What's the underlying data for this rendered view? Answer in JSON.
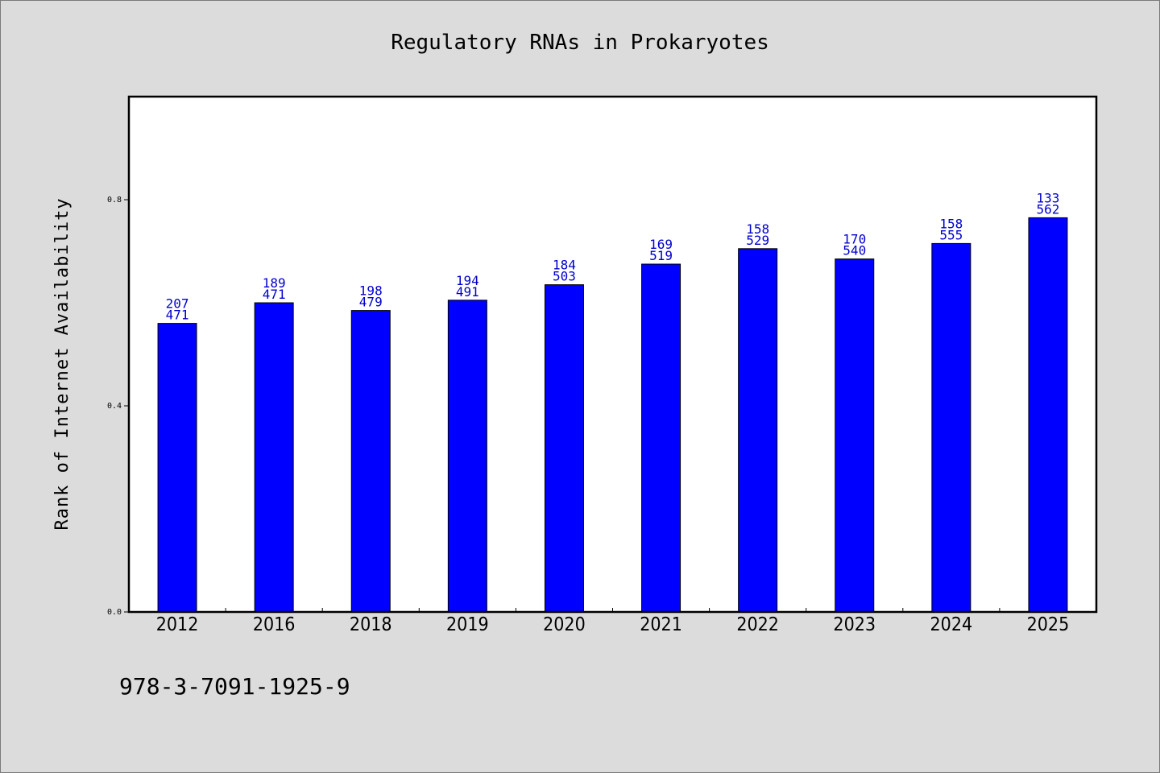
{
  "chart_data": {
    "type": "bar",
    "title": "Regulatory RNAs in Prokaryotes",
    "xlabel": "",
    "ylabel": "Rank of Internet Availability",
    "categories": [
      "2012",
      "2016",
      "2018",
      "2019",
      "2020",
      "2021",
      "2022",
      "2023",
      "2024",
      "2025"
    ],
    "values": [
      0.56,
      0.6,
      0.585,
      0.605,
      0.635,
      0.675,
      0.705,
      0.685,
      0.715,
      0.765
    ],
    "labels_top": [
      "207",
      "189",
      "198",
      "194",
      "184",
      "169",
      "158",
      "170",
      "158",
      "133"
    ],
    "labels_bottom": [
      "471",
      "471",
      "479",
      "491",
      "503",
      "519",
      "529",
      "540",
      "555",
      "562"
    ],
    "ylim": [
      0,
      1.0
    ],
    "yticks": [
      0.0,
      0.4,
      0.8
    ],
    "ytick_labels": [
      "0.0",
      "0.4",
      "0.8"
    ],
    "grid": false,
    "bar_color": "#0000ff",
    "label_color": "#0000cc"
  },
  "footer": {
    "isbn": "978-3-7091-1925-9"
  }
}
